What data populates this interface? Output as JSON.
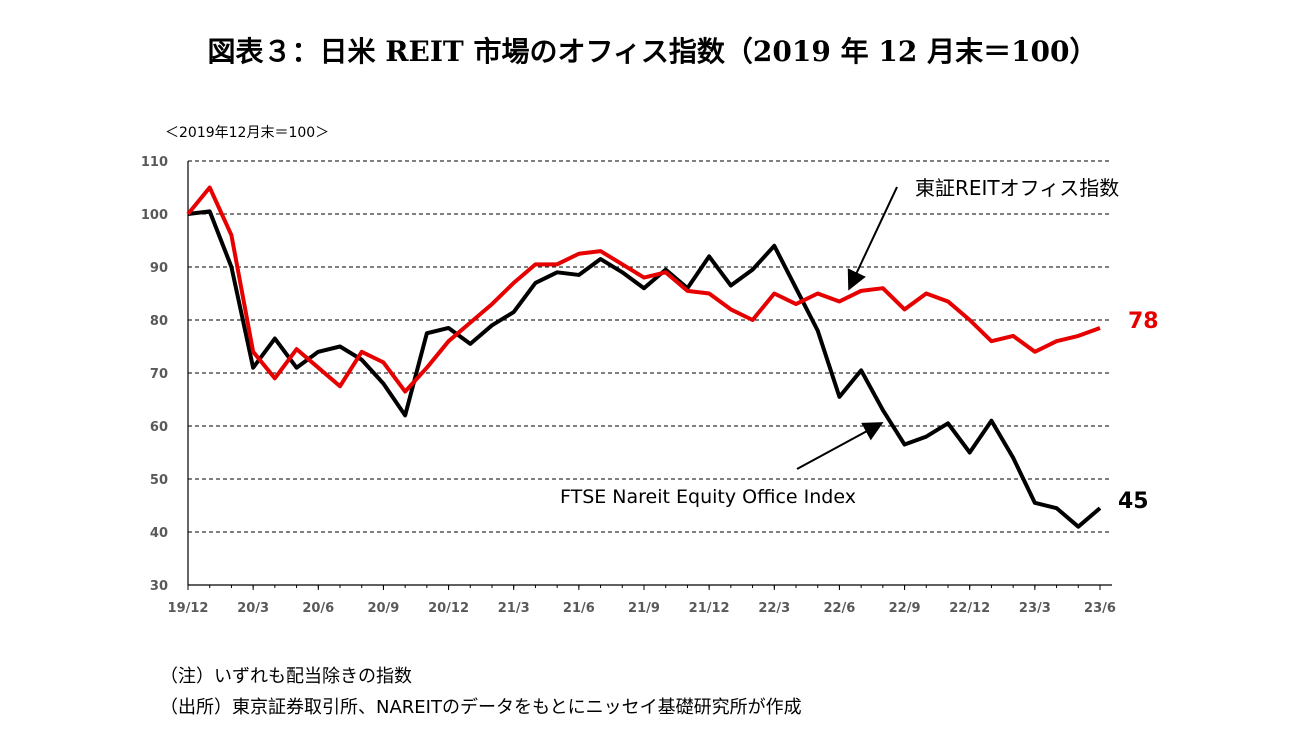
{
  "title": "図表３：日米 REIT 市場のオフィス指数（2019 年 12 月末＝100）",
  "notes": [
    "（注）いずれも配当除きの指数",
    "（出所）東京証券取引所、NAREITのデータをもとにニッセイ基礎研究所が作成"
  ],
  "chart_data": {
    "type": "line",
    "unit_label": "＜2019年12月末＝100＞",
    "ylim": [
      30,
      110
    ],
    "yticks": [
      30,
      40,
      50,
      60,
      70,
      80,
      90,
      100,
      110
    ],
    "grid": true,
    "xtick_labels": [
      "19/12",
      "20/3",
      "20/6",
      "20/9",
      "20/12",
      "21/3",
      "21/6",
      "21/9",
      "21/12",
      "22/3",
      "22/6",
      "22/9",
      "22/12",
      "23/3",
      "23/6"
    ],
    "series": [
      {
        "name": "東証REITオフィス指数",
        "color": "#e60000",
        "end_label": "78",
        "values": [
          100,
          105,
          96,
          74,
          69,
          74.5,
          71,
          67.5,
          74,
          72,
          66.5,
          71,
          76,
          79.5,
          83,
          87,
          90.5,
          90.5,
          92.5,
          93,
          90.5,
          88,
          89,
          85.5,
          85,
          82,
          80,
          85,
          83,
          85,
          83.5,
          85.5,
          86,
          82,
          85,
          83.5,
          80,
          76,
          77,
          74,
          76,
          77,
          78.5
        ]
      },
      {
        "name": "FTSE Nareit Equity Office Index",
        "color": "#000000",
        "end_label": "45",
        "values": [
          100,
          100.5,
          90,
          71,
          76.5,
          71,
          74,
          75,
          72.5,
          68,
          62,
          77.5,
          78.5,
          75.5,
          79,
          81.5,
          87,
          89,
          88.5,
          91.5,
          89,
          86,
          89.5,
          86,
          92,
          86.5,
          89.5,
          94,
          86,
          78,
          65.5,
          70.5,
          63,
          56.5,
          58,
          60.5,
          55,
          61,
          54,
          45.5,
          44.5,
          41,
          44.5
        ]
      }
    ]
  }
}
